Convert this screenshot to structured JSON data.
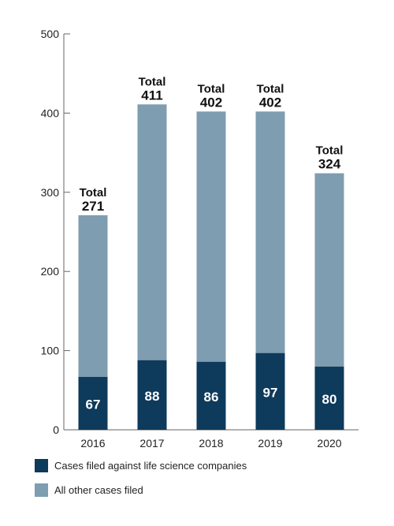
{
  "chart_data": {
    "type": "bar",
    "stacked": true,
    "categories": [
      "2016",
      "2017",
      "2018",
      "2019",
      "2020"
    ],
    "series": [
      {
        "name": "Cases filed against life science companies",
        "values": [
          67,
          88,
          86,
          97,
          80
        ],
        "color": "#0e3a5b"
      },
      {
        "name": "All other cases filed",
        "values": [
          204,
          323,
          316,
          305,
          244
        ],
        "color": "#7f9db0"
      }
    ],
    "total_prefix": "Total",
    "totals": [
      271,
      411,
      402,
      402,
      324
    ],
    "yticks": [
      0,
      100,
      200,
      300,
      400,
      500
    ],
    "ylim": [
      0,
      500
    ],
    "grid": false,
    "legend_position": "bottom-left"
  }
}
